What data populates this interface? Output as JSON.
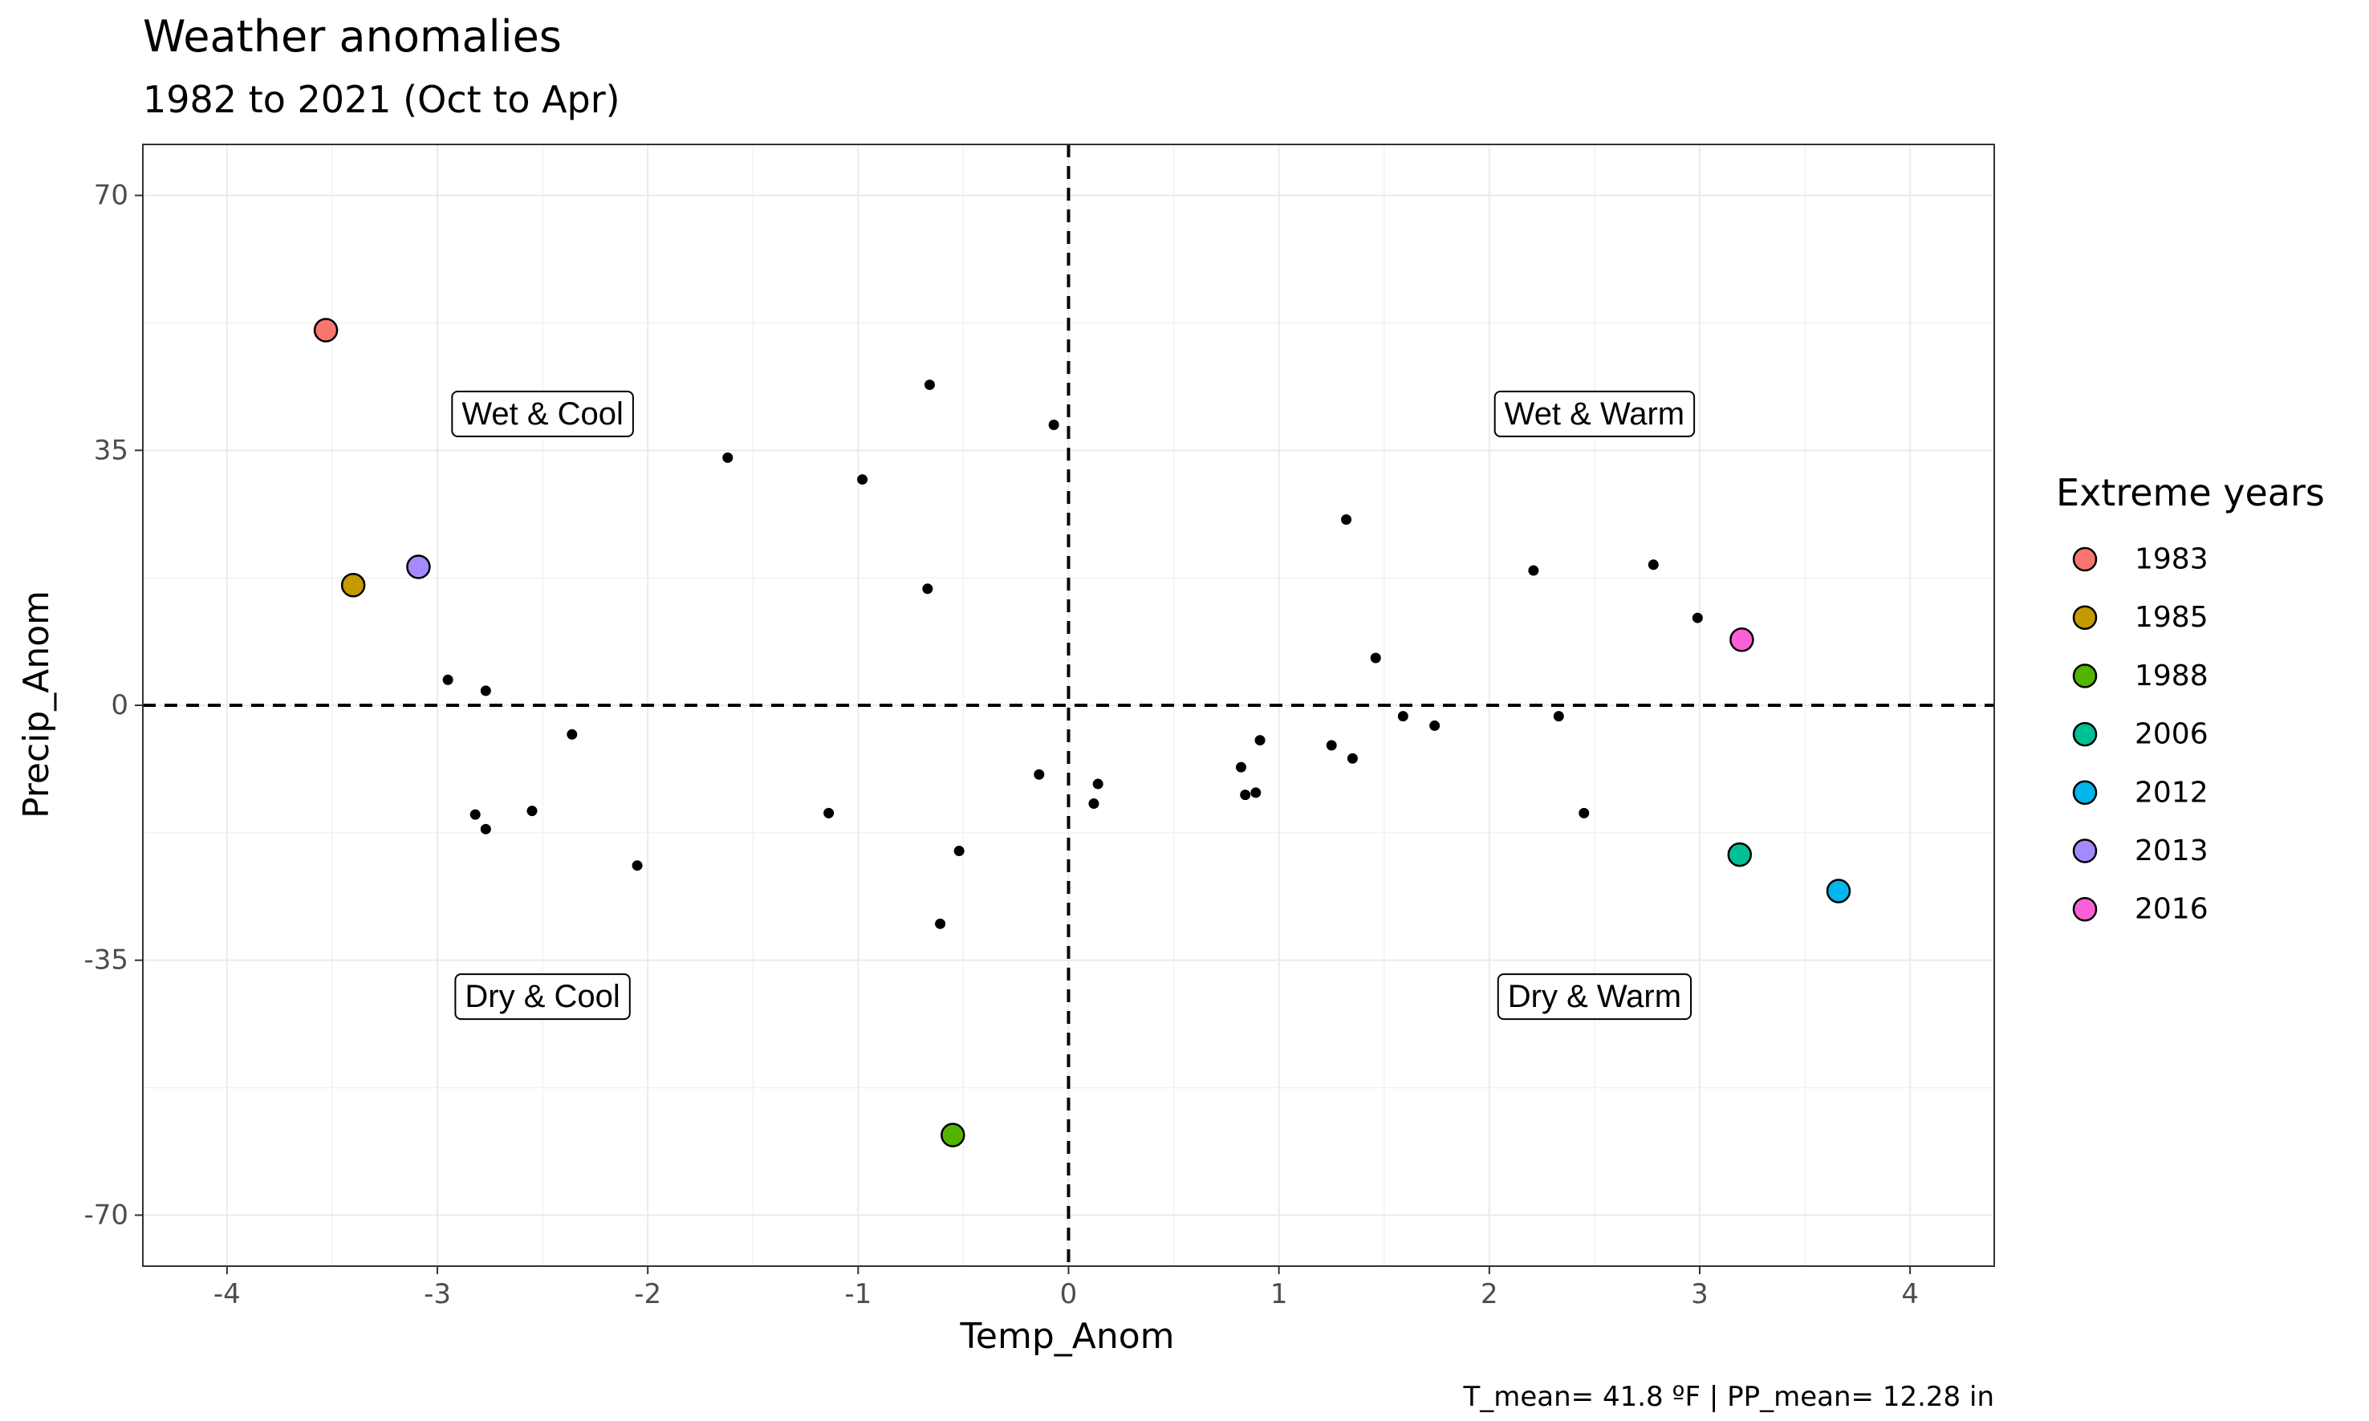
{
  "chart_data": {
    "type": "scatter",
    "title": "Weather anomalies",
    "subtitle": "1982 to 2021 (Oct to Apr)",
    "xlabel": "Temp_Anom",
    "ylabel": "Precip_Anom",
    "caption": "T_mean= 41.8 ºF | PP_mean= 12.28 in",
    "xlim": [
      -4.4,
      4.4
    ],
    "ylim": [
      -77,
      77
    ],
    "x_ticks": [
      -4,
      -3,
      -2,
      -1,
      0,
      1,
      2,
      3,
      4
    ],
    "x_tick_labels": [
      "-4",
      "-3",
      "-2",
      "-1",
      "0",
      "1",
      "2",
      "3",
      "4"
    ],
    "y_ticks": [
      -70,
      -35,
      0,
      35,
      70
    ],
    "y_tick_labels": [
      "-70",
      "-35",
      "0",
      "35",
      "70"
    ],
    "grid": true,
    "reference_lines": {
      "x": 0,
      "y": 0,
      "style": "dashed"
    },
    "quadrant_labels": [
      {
        "text": "Wet & Cool",
        "x": -2.5,
        "y": 40
      },
      {
        "text": "Wet & Warm",
        "x": 2.5,
        "y": 40
      },
      {
        "text": "Dry & Cool",
        "x": -2.5,
        "y": -40
      },
      {
        "text": "Dry & Warm",
        "x": 2.5,
        "y": -40
      }
    ],
    "points": [
      [
        -0.66,
        44
      ],
      [
        -0.07,
        38.5
      ],
      [
        -1.62,
        34
      ],
      [
        -0.98,
        31
      ],
      [
        -0.67,
        16
      ],
      [
        -2.95,
        3.5
      ],
      [
        -2.77,
        2
      ],
      [
        -2.36,
        -4
      ],
      [
        -2.82,
        -15
      ],
      [
        -2.77,
        -17
      ],
      [
        -2.55,
        -14.5
      ],
      [
        -2.05,
        -22
      ],
      [
        -1.14,
        -14.8
      ],
      [
        -0.14,
        -9.5
      ],
      [
        0.12,
        -13.5
      ],
      [
        0.14,
        -10.8
      ],
      [
        -0.52,
        -20
      ],
      [
        -0.61,
        -30
      ],
      [
        0.82,
        -8.5
      ],
      [
        0.84,
        -12.3
      ],
      [
        0.89,
        -12
      ],
      [
        0.91,
        -4.8
      ],
      [
        1.32,
        25.5
      ],
      [
        1.46,
        6.5
      ],
      [
        1.25,
        -5.5
      ],
      [
        1.35,
        -7.3
      ],
      [
        1.59,
        -1.5
      ],
      [
        1.74,
        -2.8
      ],
      [
        2.21,
        18.5
      ],
      [
        2.33,
        -1.5
      ],
      [
        2.45,
        -14.8
      ],
      [
        2.78,
        19.3
      ],
      [
        2.99,
        12
      ]
    ],
    "legend": {
      "title": "Extreme years",
      "position": "right",
      "entries": [
        {
          "label": "1983",
          "color": "#F8766D",
          "x": -3.53,
          "y": 51.5
        },
        {
          "label": "1985",
          "color": "#C49A00",
          "x": -3.4,
          "y": 16.5
        },
        {
          "label": "1988",
          "color": "#53B400",
          "x": -0.55,
          "y": -59
        },
        {
          "label": "2006",
          "color": "#00C094",
          "x": 3.19,
          "y": -20.5
        },
        {
          "label": "2012",
          "color": "#00B6EB",
          "x": 3.66,
          "y": -25.5
        },
        {
          "label": "2013",
          "color": "#A58AFF",
          "x": -3.09,
          "y": 19
        },
        {
          "label": "2016",
          "color": "#FB61D7",
          "x": 3.2,
          "y": 9
        }
      ]
    }
  }
}
